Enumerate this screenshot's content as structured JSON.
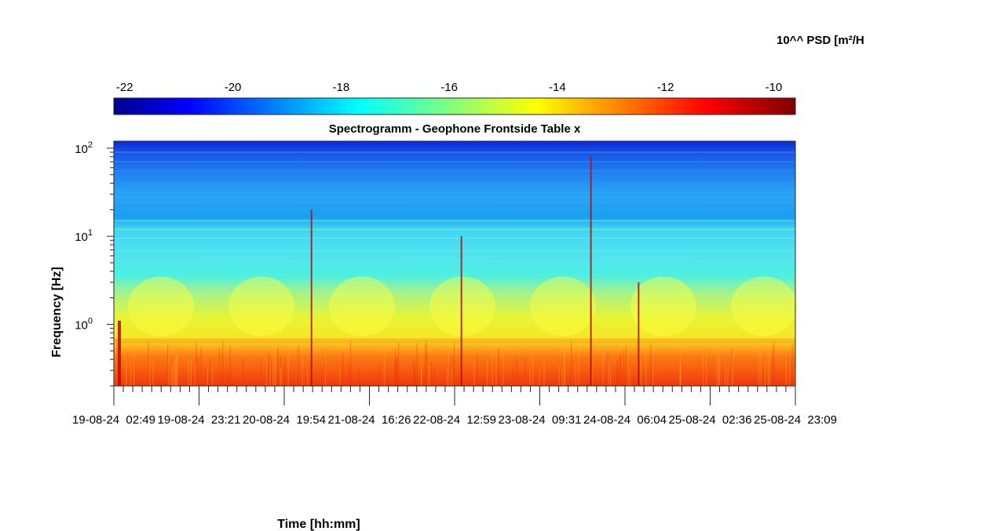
{
  "chart_data": {
    "type": "heatmap",
    "title": "Spectrogramm - Geophone Frontside Table x",
    "xlabel": "Time [hh:mm]",
    "ylabel": "Frequency [Hz]",
    "colorbar_label": "10^^ PSD [m²/H",
    "colorbar": {
      "colormap": "jet",
      "range": [
        -22.2,
        -9.6
      ],
      "ticks": [
        -22,
        -20,
        -18,
        -16,
        -14,
        -12,
        -10
      ],
      "tick_labels": [
        "-22",
        "-20",
        "-18",
        "-16",
        "-14",
        "-12",
        "-10"
      ],
      "placement": "top"
    },
    "y_axis": {
      "scale": "log",
      "range": [
        0.2,
        120
      ],
      "ticks": [
        {
          "base": "10",
          "exp": "0"
        },
        {
          "base": "10",
          "exp": "1"
        },
        {
          "base": "10",
          "exp": "2"
        }
      ]
    },
    "x_axis": {
      "tick_labels": [
        "19-08-24  02:49",
        "19-08-24  23:21",
        "20-08-24  19:54",
        "21-08-24  16:26",
        "22-08-24  12:59",
        "23-08-24  09:31",
        "24-08-24  06:04",
        "25-08-24  02:36",
        "25-08-24  23:09"
      ]
    },
    "bands": [
      {
        "freq_range": [
          0.2,
          0.65
        ],
        "log10_psd": -11.5
      },
      {
        "freq_range": [
          0.65,
          4
        ],
        "log10_psd": -14.2
      },
      {
        "freq_range": [
          4,
          15
        ],
        "log10_psd": -16.5
      },
      {
        "freq_range": [
          15,
          120
        ],
        "log10_psd": -18.7
      }
    ],
    "transient_events": [
      {
        "time_fraction": 0.29,
        "freq_max": 20
      },
      {
        "time_fraction": 0.51,
        "freq_max": 10
      },
      {
        "time_fraction": 0.7,
        "freq_max": 80
      },
      {
        "time_fraction": 0.77,
        "freq_max": 3
      }
    ]
  },
  "colors": {
    "jet": [
      "#00008f",
      "#0000ff",
      "#00ffff",
      "#ffff00",
      "#ff0000",
      "#800000"
    ]
  }
}
